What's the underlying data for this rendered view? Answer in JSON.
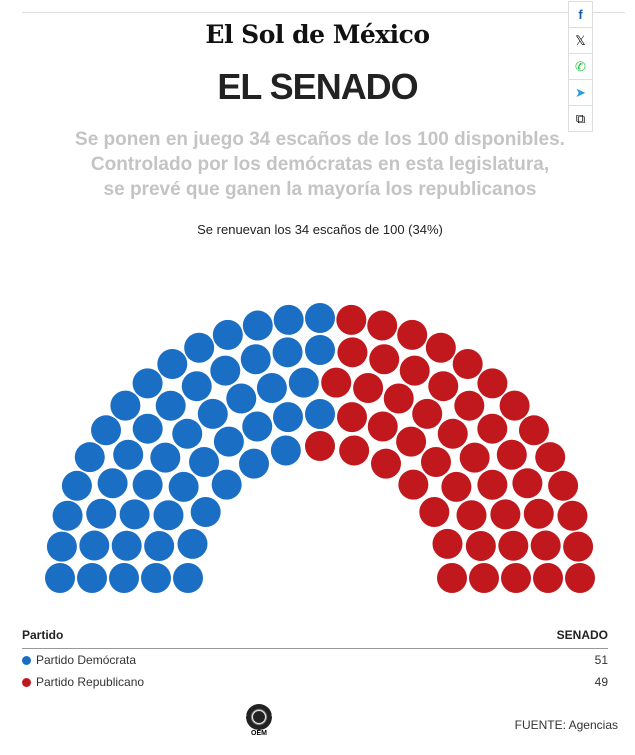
{
  "logo": "El Sol de México",
  "title": "EL SENADO",
  "subtitle": [
    "Se ponen en juego 34 escaños de los 100 disponibles.",
    "Controlado por los demócratas en esta legislatura,",
    "se prevé que ganen la mayoría los republicanos"
  ],
  "share": {
    "facebook": "f",
    "x": "𝕏",
    "whatsapp": "✆",
    "telegram": "➤",
    "copy": "⧉"
  },
  "chart_data": {
    "type": "parliament",
    "title": "Se renuevan los 34 escaños de 100 (34%)",
    "total": 100,
    "series": [
      {
        "name": "Partido Demócrata",
        "value": 51,
        "color": "#1a6ec4"
      },
      {
        "name": "Partido Republicano",
        "value": 49,
        "color": "#c0181d"
      }
    ]
  },
  "table": {
    "header_party": "Partido",
    "header_value": "SENADO",
    "rows": [
      {
        "label": "Partido Demócrata",
        "value": "51",
        "color": "#1a6ec4"
      },
      {
        "label": "Partido Republicano",
        "value": "49",
        "color": "#c0181d"
      }
    ]
  },
  "footer": {
    "logo": "OEM",
    "source": "FUENTE: Agencias"
  }
}
